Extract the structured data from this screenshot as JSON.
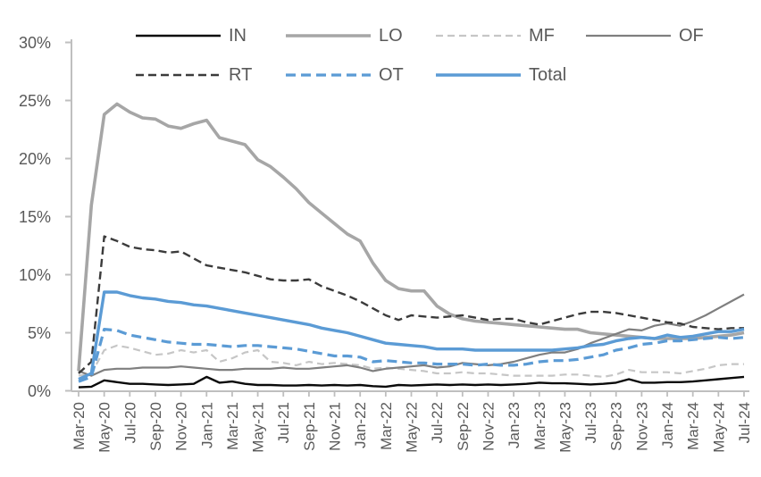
{
  "chart_data": {
    "type": "line",
    "title": "",
    "xlabel": "",
    "ylabel": "",
    "ylim": [
      0,
      30
    ],
    "y_tick_labels": [
      "0%",
      "5%",
      "10%",
      "15%",
      "20%",
      "25%",
      "30%"
    ],
    "x_label_every": 2,
    "grid": false,
    "legend_position": "top",
    "axis_color": "#bfbfbf",
    "text_color": "#595959",
    "accent_blue": "#5b9bd5",
    "months": [
      "Mar-20",
      "Apr-20",
      "May-20",
      "Jun-20",
      "Jul-20",
      "Aug-20",
      "Sep-20",
      "Oct-20",
      "Nov-20",
      "Dec-20",
      "Jan-21",
      "Feb-21",
      "Mar-21",
      "Apr-21",
      "May-21",
      "Jun-21",
      "Jul-21",
      "Aug-21",
      "Sep-21",
      "Oct-21",
      "Nov-21",
      "Dec-21",
      "Jan-22",
      "Feb-22",
      "Mar-22",
      "Apr-22",
      "May-22",
      "Jun-22",
      "Jul-22",
      "Aug-22",
      "Sep-22",
      "Oct-22",
      "Nov-22",
      "Dec-22",
      "Jan-23",
      "Feb-23",
      "Mar-23",
      "Apr-23",
      "May-23",
      "Jun-23",
      "Jul-23",
      "Aug-23",
      "Sep-23",
      "Oct-23",
      "Nov-23",
      "Dec-23",
      "Jan-24",
      "Feb-24",
      "Mar-24",
      "Apr-24",
      "May-24",
      "Jun-24",
      "Jul-24"
    ],
    "visible_x_tick_labels": [
      "Mar-20",
      "May-20",
      "Jul-20",
      "Sep-20",
      "Nov-20",
      "Jan-21",
      "Mar-21",
      "May-21",
      "Jul-21",
      "Sep-21",
      "Nov-21",
      "Jan-22",
      "Mar-22",
      "May-22",
      "Jul-22",
      "Sep-22",
      "Nov-22",
      "Jan-23",
      "Mar-23",
      "May-23",
      "Jul-23",
      "Sep-23",
      "Nov-23",
      "Jan-24",
      "Mar-24",
      "May-24",
      "Jul-24"
    ],
    "legend": {
      "rows": [
        [
          "IN",
          "LO",
          "MF",
          "OF"
        ],
        [
          "RT",
          "OT",
          "Total"
        ]
      ]
    },
    "series": [
      {
        "name": "IN",
        "color": "#0a0a0a",
        "dash": null,
        "width": 2.4,
        "values": [
          0.3,
          0.35,
          0.9,
          0.75,
          0.6,
          0.6,
          0.55,
          0.5,
          0.55,
          0.6,
          1.2,
          0.7,
          0.8,
          0.6,
          0.5,
          0.5,
          0.45,
          0.45,
          0.5,
          0.45,
          0.5,
          0.45,
          0.5,
          0.4,
          0.35,
          0.5,
          0.45,
          0.5,
          0.55,
          0.5,
          0.55,
          0.5,
          0.55,
          0.5,
          0.55,
          0.6,
          0.7,
          0.65,
          0.65,
          0.6,
          0.55,
          0.6,
          0.7,
          1.0,
          0.7,
          0.7,
          0.75,
          0.75,
          0.8,
          0.9,
          1.0,
          1.1,
          1.2
        ]
      },
      {
        "name": "LO",
        "color": "#a6a6a6",
        "dash": null,
        "width": 3.6,
        "values": [
          1.7,
          16.0,
          23.8,
          24.7,
          24.0,
          23.5,
          23.4,
          22.8,
          22.6,
          23.0,
          23.3,
          21.8,
          21.5,
          21.2,
          19.9,
          19.3,
          18.4,
          17.4,
          16.2,
          15.3,
          14.4,
          13.5,
          12.9,
          11.0,
          9.5,
          8.8,
          8.6,
          8.6,
          7.3,
          6.6,
          6.2,
          6.0,
          5.9,
          5.8,
          5.7,
          5.6,
          5.5,
          5.4,
          5.3,
          5.3,
          5.0,
          4.9,
          4.8,
          4.7,
          4.6,
          4.5,
          4.5,
          4.5,
          4.5,
          4.6,
          4.7,
          4.8,
          5.0
        ]
      },
      {
        "name": "MF",
        "color": "#c6c6c6",
        "dash": "8 5",
        "width": 2.2,
        "values": [
          1.3,
          1.5,
          3.5,
          3.9,
          3.7,
          3.4,
          3.1,
          3.2,
          3.5,
          3.3,
          3.5,
          2.5,
          2.8,
          3.3,
          3.5,
          2.5,
          2.4,
          2.2,
          2.5,
          2.3,
          2.4,
          2.3,
          2.2,
          1.9,
          2.0,
          1.9,
          1.8,
          1.7,
          1.5,
          1.5,
          1.6,
          1.5,
          1.5,
          1.4,
          1.3,
          1.3,
          1.3,
          1.3,
          1.4,
          1.4,
          1.3,
          1.2,
          1.4,
          1.8,
          1.6,
          1.6,
          1.6,
          1.5,
          1.7,
          1.9,
          2.2,
          2.3,
          2.3
        ]
      },
      {
        "name": "OF",
        "color": "#7f7f7f",
        "dash": null,
        "width": 2.2,
        "values": [
          1.7,
          1.3,
          1.8,
          1.9,
          1.9,
          2.0,
          2.0,
          2.0,
          2.1,
          2.0,
          1.9,
          1.8,
          1.8,
          1.9,
          1.9,
          1.9,
          2.0,
          1.9,
          1.9,
          2.0,
          2.1,
          2.2,
          2.0,
          1.7,
          1.9,
          2.0,
          2.1,
          2.2,
          2.0,
          2.1,
          2.4,
          2.3,
          2.2,
          2.3,
          2.5,
          2.8,
          3.1,
          3.3,
          3.3,
          3.6,
          4.1,
          4.5,
          4.9,
          5.3,
          5.2,
          5.6,
          5.8,
          5.6,
          6.0,
          6.5,
          7.1,
          7.7,
          8.3
        ]
      },
      {
        "name": "RT",
        "color": "#3b3b3b",
        "dash": "9 5",
        "width": 2.4,
        "values": [
          1.5,
          2.5,
          13.3,
          12.9,
          12.4,
          12.2,
          12.1,
          11.9,
          12.0,
          11.4,
          10.8,
          10.6,
          10.4,
          10.2,
          9.9,
          9.6,
          9.5,
          9.5,
          9.6,
          9.0,
          8.6,
          8.2,
          7.7,
          7.1,
          6.5,
          6.1,
          6.5,
          6.4,
          6.3,
          6.4,
          6.5,
          6.3,
          6.1,
          6.2,
          6.2,
          5.9,
          5.7,
          6.0,
          6.3,
          6.6,
          6.8,
          6.8,
          6.7,
          6.5,
          6.3,
          6.1,
          5.9,
          5.8,
          5.5,
          5.4,
          5.3,
          5.4,
          5.4
        ]
      },
      {
        "name": "OT",
        "color": "#5b9bd5",
        "dash": "11 6",
        "width": 3.2,
        "values": [
          0.8,
          1.2,
          5.3,
          5.2,
          4.8,
          4.6,
          4.4,
          4.2,
          4.1,
          4.0,
          4.0,
          3.9,
          3.8,
          3.9,
          3.9,
          3.8,
          3.7,
          3.6,
          3.4,
          3.2,
          3.0,
          3.0,
          2.9,
          2.5,
          2.6,
          2.5,
          2.4,
          2.4,
          2.3,
          2.3,
          2.3,
          2.2,
          2.3,
          2.2,
          2.2,
          2.3,
          2.5,
          2.6,
          2.6,
          2.7,
          2.9,
          3.1,
          3.5,
          3.7,
          4.0,
          4.1,
          4.3,
          4.3,
          4.4,
          4.5,
          4.6,
          4.5,
          4.6
        ]
      },
      {
        "name": "Total",
        "color": "#5b9bd5",
        "dash": null,
        "width": 3.4,
        "values": [
          1.0,
          1.5,
          8.5,
          8.5,
          8.2,
          8.0,
          7.9,
          7.7,
          7.6,
          7.4,
          7.3,
          7.1,
          6.9,
          6.7,
          6.5,
          6.3,
          6.1,
          5.9,
          5.7,
          5.4,
          5.2,
          5.0,
          4.7,
          4.4,
          4.1,
          4.0,
          3.9,
          3.8,
          3.6,
          3.6,
          3.6,
          3.5,
          3.5,
          3.5,
          3.5,
          3.5,
          3.5,
          3.5,
          3.6,
          3.7,
          3.9,
          4.0,
          4.3,
          4.5,
          4.6,
          4.5,
          4.8,
          4.6,
          4.7,
          4.9,
          5.1,
          5.1,
          5.3
        ]
      }
    ]
  }
}
